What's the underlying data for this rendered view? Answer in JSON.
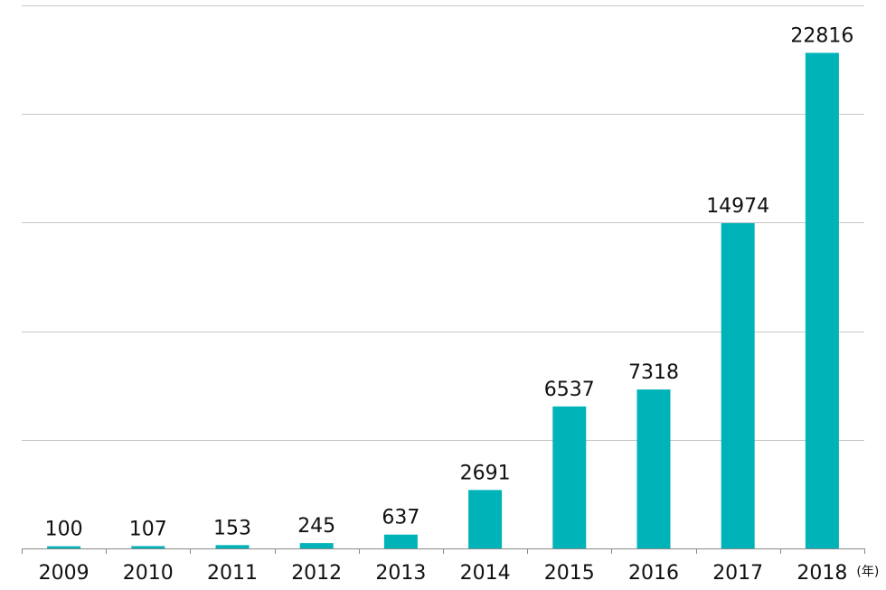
{
  "chart_data": {
    "type": "bar",
    "categories": [
      "2009",
      "2010",
      "2011",
      "2012",
      "2013",
      "2014",
      "2015",
      "2016",
      "2017",
      "2018"
    ],
    "values": [
      100,
      107,
      153,
      245,
      637,
      2691,
      6537,
      7318,
      14974,
      22816
    ],
    "title": "",
    "xlabel": "(年)",
    "ylabel": "",
    "ylim": [
      0,
      25000
    ],
    "grid": true,
    "bar_color": "#00b3b8",
    "grid_color": "#c8c8c8",
    "axis_color": "#8a8a8a",
    "text_color": "#111111"
  }
}
